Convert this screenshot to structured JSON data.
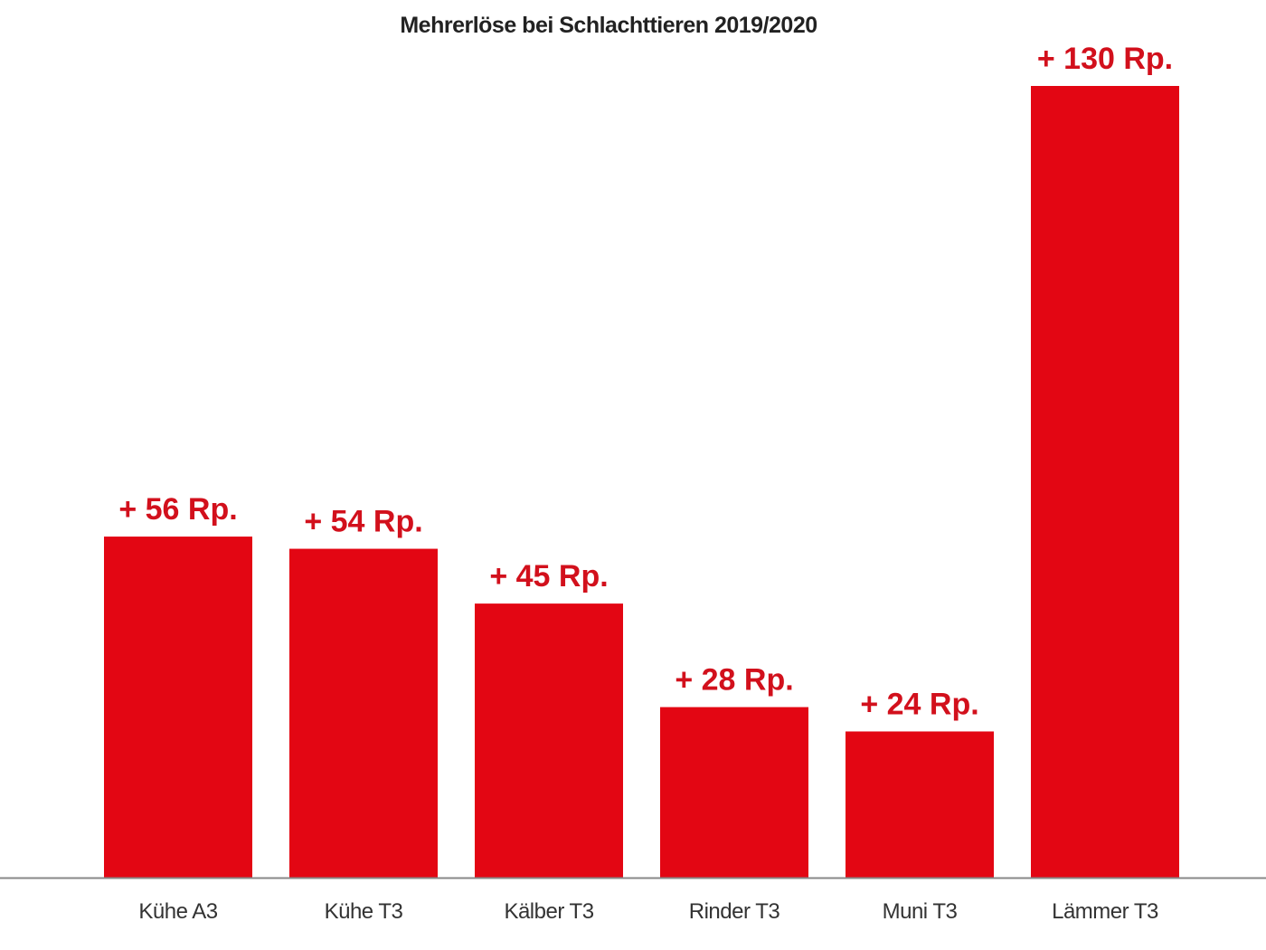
{
  "chart_data": {
    "type": "bar",
    "title": "Mehrerlöse bei Schlachttieren 2019/2020",
    "categories": [
      "Kühe A3",
      "Kühe T3",
      "Kälber T3",
      "Rinder T3",
      "Muni T3",
      "Lämmer T3"
    ],
    "values": [
      56,
      54,
      45,
      28,
      24,
      130
    ],
    "data_labels": [
      "+ 56 Rp.",
      "+ 54 Rp.",
      "+ 45 Rp.",
      "+ 28 Rp.",
      "+ 24 Rp.",
      "+ 130 Rp."
    ],
    "xlabel": "",
    "ylabel": "",
    "ylim": [
      0,
      130
    ],
    "grid": false,
    "colors": {
      "bar": "#e30613",
      "label": "#d2101c",
      "axis": "#888888",
      "text": "#333333"
    }
  }
}
